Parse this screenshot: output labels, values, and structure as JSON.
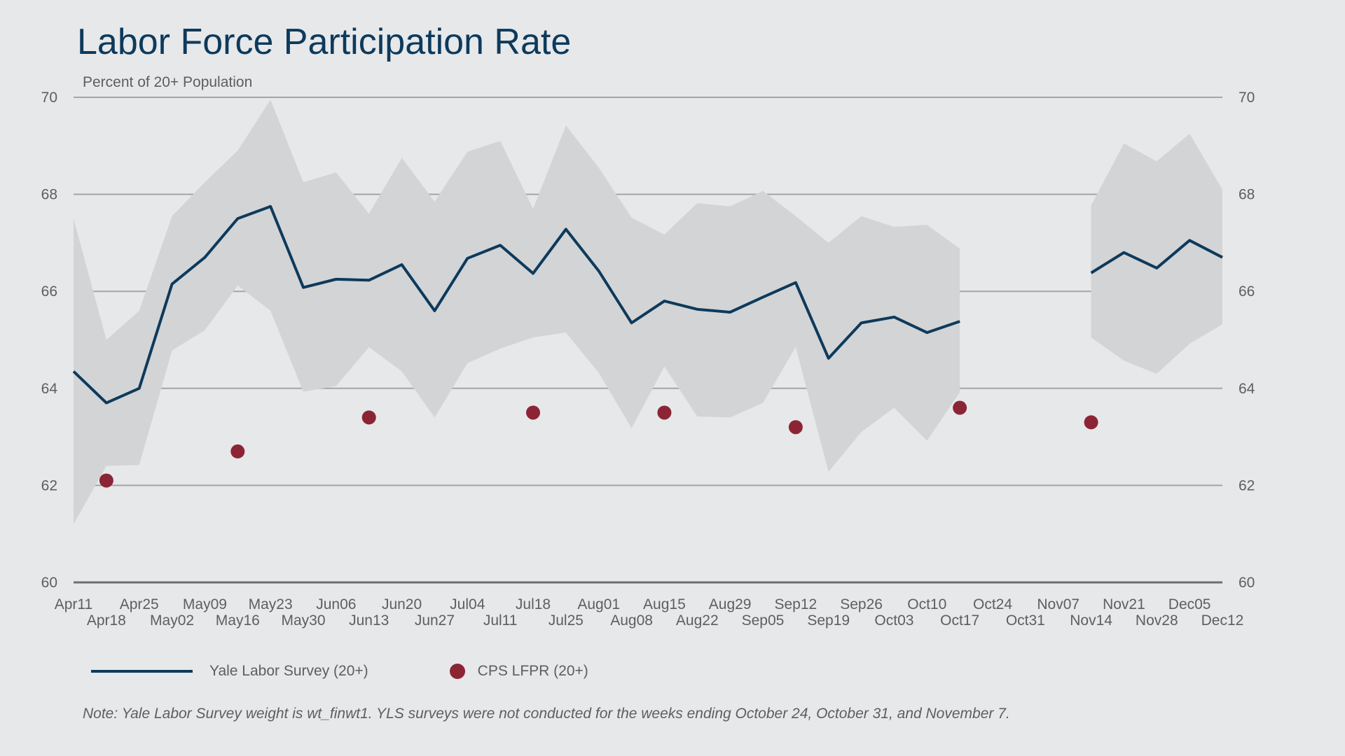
{
  "title": "Labor Force Participation Rate",
  "subtitle": "Percent of 20+ Population",
  "note": "Note: Yale Labor Survey weight is wt_finwt1. YLS surveys were not conducted for the weeks ending October 24, October 31, and November 7.",
  "legend": {
    "line_label": "Yale Labor Survey (20+)",
    "dot_label": "CPS LFPR (20+)"
  },
  "colors": {
    "line": "#0d3a5c",
    "dot": "#8b2535",
    "band": "#d3d4d6",
    "grid": "#a4a5a7",
    "baseline": "#6e6e70"
  },
  "chart_data": {
    "type": "line",
    "title": "Labor Force Participation Rate",
    "ylabel": "Percent of 20+ Population",
    "ylim": [
      60,
      70
    ],
    "yticks": [
      60,
      62,
      64,
      66,
      68,
      70
    ],
    "dual_y_axis": true,
    "grid": true,
    "legend_position": "bottom-left",
    "x": [
      "Apr11",
      "Apr18",
      "Apr25",
      "May02",
      "May09",
      "May16",
      "May23",
      "May30",
      "Jun06",
      "Jun13",
      "Jun20",
      "Jun27",
      "Jul04",
      "Jul11",
      "Jul18",
      "Jul25",
      "Aug01",
      "Aug08",
      "Aug15",
      "Aug22",
      "Aug29",
      "Sep05",
      "Sep12",
      "Sep19",
      "Sep26",
      "Oct03",
      "Oct10",
      "Oct17",
      "Oct24",
      "Oct31",
      "Nov07",
      "Nov14",
      "Nov21",
      "Nov28",
      "Dec05",
      "Dec12"
    ],
    "series": [
      {
        "name": "Yale Labor Survey (20+)",
        "kind": "line",
        "values": [
          64.35,
          63.7,
          64.0,
          66.15,
          66.7,
          67.5,
          67.75,
          66.08,
          66.25,
          66.23,
          66.55,
          65.6,
          66.68,
          66.95,
          66.37,
          67.28,
          66.42,
          65.35,
          65.8,
          65.63,
          65.57,
          65.88,
          66.18,
          64.62,
          65.35,
          65.47,
          65.15,
          65.38,
          null,
          null,
          null,
          66.38,
          66.8,
          66.48,
          67.05,
          66.7
        ]
      },
      {
        "name": "confidence band",
        "kind": "band",
        "upper": [
          67.5,
          65.0,
          65.6,
          67.55,
          68.25,
          68.9,
          69.95,
          68.25,
          68.45,
          67.6,
          68.75,
          67.85,
          68.88,
          69.1,
          67.7,
          69.42,
          68.55,
          67.52,
          67.17,
          67.82,
          67.75,
          68.07,
          67.55,
          67.0,
          67.55,
          67.33,
          67.37,
          66.88,
          null,
          null,
          null,
          67.77,
          69.05,
          68.68,
          69.25,
          68.1
        ],
        "lower": [
          61.2,
          62.4,
          62.42,
          64.78,
          65.2,
          66.12,
          65.6,
          63.93,
          64.05,
          64.85,
          64.35,
          63.4,
          64.52,
          64.82,
          65.05,
          65.15,
          64.32,
          63.18,
          64.45,
          63.42,
          63.4,
          63.7,
          64.85,
          62.28,
          63.1,
          63.6,
          62.92,
          63.92,
          null,
          null,
          null,
          65.05,
          64.57,
          64.3,
          64.92,
          65.32
        ]
      },
      {
        "name": "CPS LFPR (20+)",
        "kind": "scatter",
        "points": [
          {
            "x": "Apr18",
            "y": 62.1
          },
          {
            "x": "May16",
            "y": 62.7
          },
          {
            "x": "Jun13",
            "y": 63.4
          },
          {
            "x": "Jul18",
            "y": 63.5
          },
          {
            "x": "Aug15",
            "y": 63.5
          },
          {
            "x": "Sep12",
            "y": 63.2
          },
          {
            "x": "Oct17",
            "y": 63.6
          },
          {
            "x": "Nov14",
            "y": 63.3
          }
        ]
      }
    ]
  }
}
